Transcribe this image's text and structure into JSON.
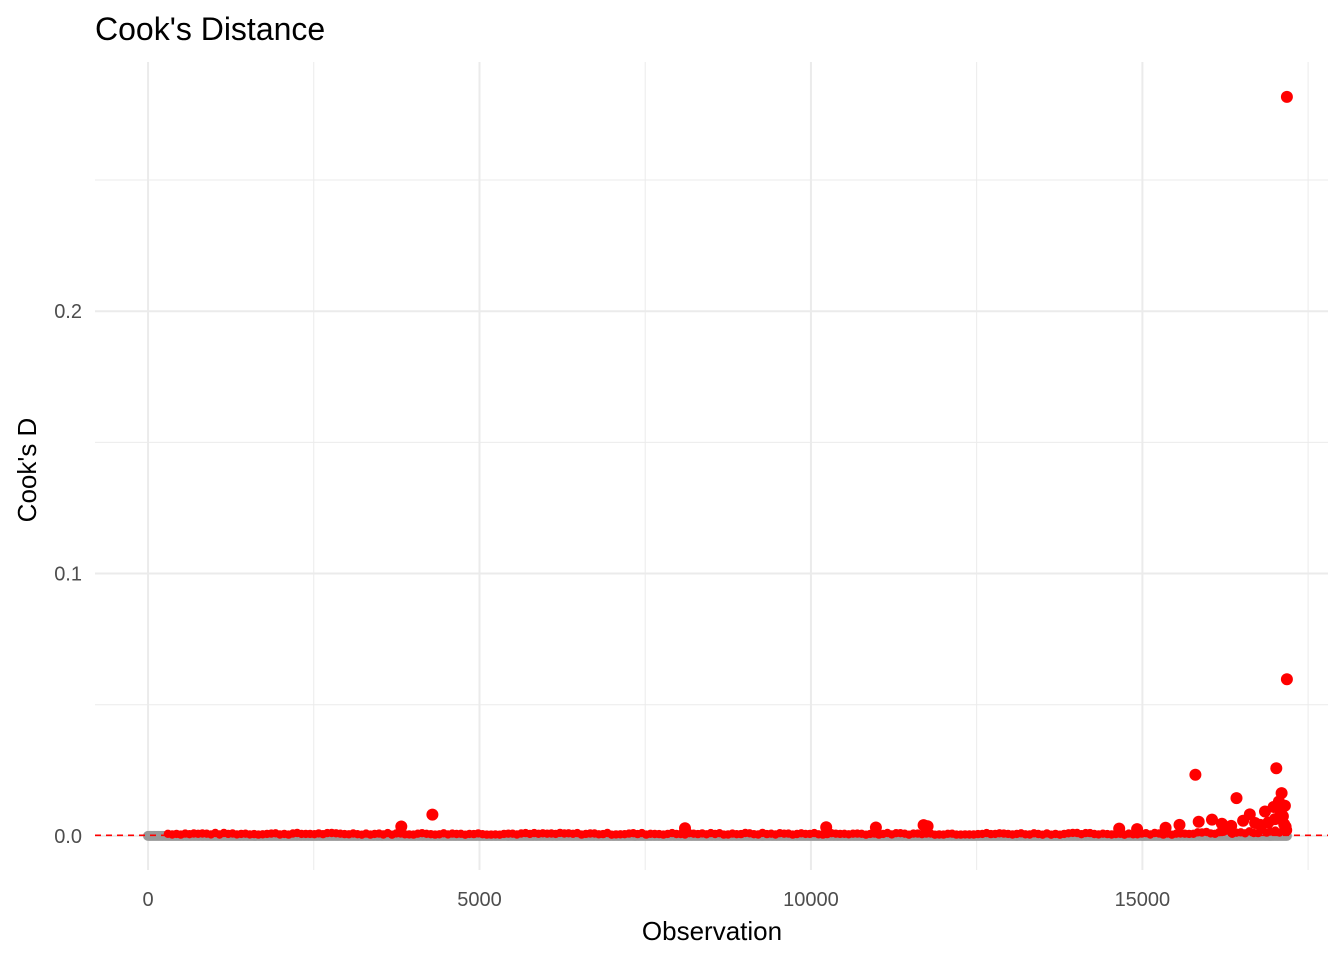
{
  "chart_data": {
    "type": "scatter",
    "title": "Cook's Distance",
    "xlabel": "Observation",
    "ylabel": "Cook's D",
    "xlim": [
      -800,
      17800
    ],
    "ylim": [
      -0.013,
      0.295
    ],
    "x_ticks": [
      0,
      5000,
      10000,
      15000
    ],
    "x_tick_labels": [
      "0",
      "5000",
      "10000",
      "15000"
    ],
    "y_ticks": [
      0.0,
      0.1,
      0.2
    ],
    "y_tick_labels": [
      "0.0",
      "0.1",
      "0.2"
    ],
    "grid": true,
    "legend": "none",
    "n_observations": 17180,
    "threshold": {
      "y": 0.000233,
      "style": "dashed",
      "color": "#ff0000"
    },
    "colors": {
      "below_threshold": "#999999",
      "above_threshold": "#ff0000",
      "grid": "#ebebeb"
    },
    "series": [
      {
        "color": "#ff0000",
        "x": [
          17180,
          17180,
          17020,
          15800,
          16420,
          17100,
          17060,
          16980,
          17150,
          16850,
          16620,
          17120,
          15850,
          16050,
          16200,
          16520,
          16700,
          16780,
          17160,
          17170,
          4290,
          3820,
          11700,
          11760,
          10230,
          10980,
          8100,
          14650,
          14920,
          15350,
          15560,
          16340,
          16900,
          17000,
          17090,
          17140
        ],
        "y": [
          0.2817,
          0.0597,
          0.0258,
          0.0233,
          0.0144,
          0.0163,
          0.0131,
          0.011,
          0.0115,
          0.0093,
          0.0082,
          0.0075,
          0.0054,
          0.0062,
          0.0046,
          0.0058,
          0.0049,
          0.0042,
          0.0035,
          0.0022,
          0.0081,
          0.0036,
          0.0041,
          0.0037,
          0.0033,
          0.0032,
          0.0029,
          0.0028,
          0.0026,
          0.0031,
          0.0042,
          0.0038,
          0.0051,
          0.0064,
          0.0087,
          0.0044
        ]
      }
    ]
  }
}
